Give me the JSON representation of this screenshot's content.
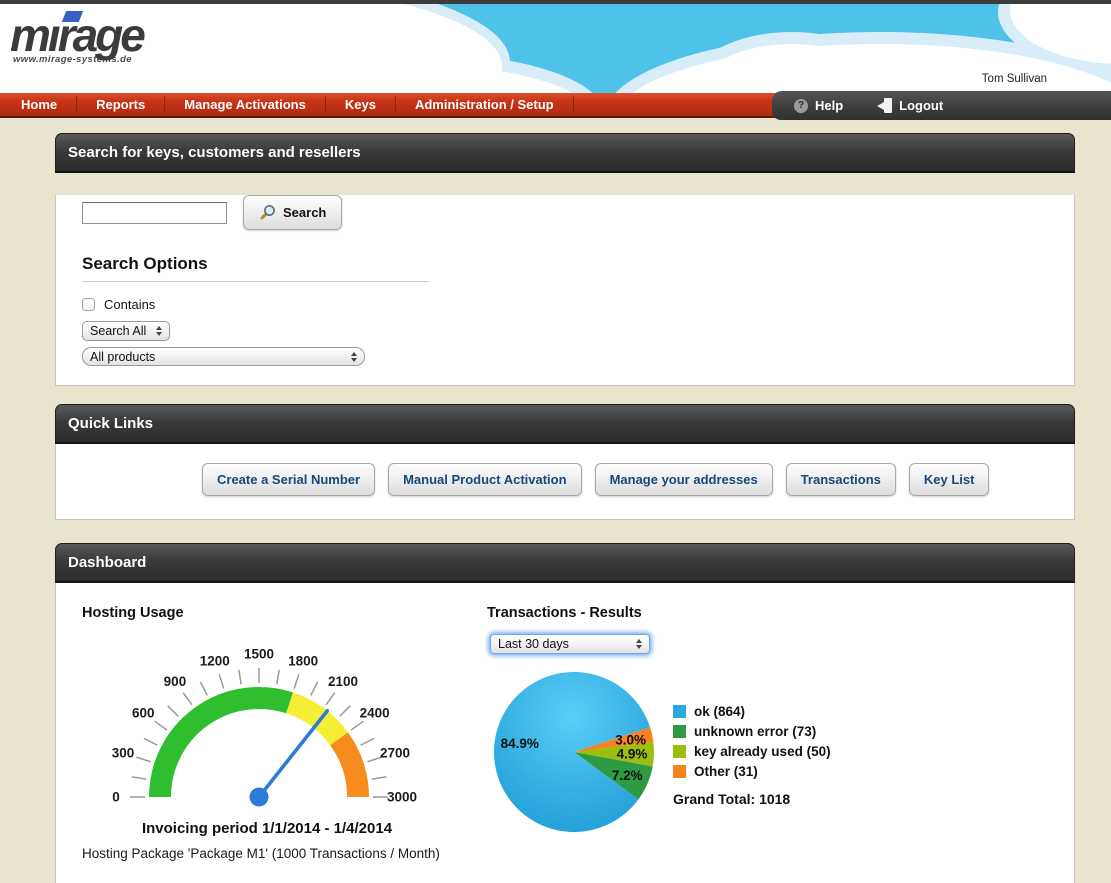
{
  "header": {
    "logo_text": "mirage",
    "logo_url": "www.mirage-systems.de",
    "user_name": "Tom Sullivan"
  },
  "nav": {
    "items": [
      "Home",
      "Reports",
      "Manage Activations",
      "Keys",
      "Administration / Setup"
    ],
    "help_label": "Help",
    "logout_label": "Logout"
  },
  "search_panel": {
    "title": "Search for keys, customers and resellers",
    "search_input_value": "",
    "search_button_label": "Search",
    "options_title": "Search Options",
    "contains_label": "Contains",
    "contains_checked": false,
    "field_select_value": "Search All",
    "product_select_value": "All products"
  },
  "quick_links": {
    "title": "Quick Links",
    "buttons": [
      "Create a Serial Number",
      "Manual Product Activation",
      "Manage your addresses",
      "Transactions",
      "Key List"
    ]
  },
  "dashboard": {
    "title": "Dashboard",
    "hosting_title": "Hosting Usage",
    "transactions_title": "Transactions - Results",
    "period_select_value": "Last 30 days"
  },
  "chart_data": [
    {
      "type": "gauge",
      "title": "Hosting Usage",
      "min": 0,
      "max": 3000,
      "value": 2140,
      "tick_step": 150,
      "label_step": 300,
      "bands": [
        {
          "from": 0,
          "to": 1800,
          "color": "#2EBE2E"
        },
        {
          "from": 1800,
          "to": 2400,
          "color": "#F4EF34"
        },
        {
          "from": 2400,
          "to": 3000,
          "color": "#F68B1E"
        }
      ],
      "needle_color": "#2B7CD9",
      "tick_color": "#999999",
      "label_color": "#1b1b1b",
      "caption": "Invoicing period 1/1/2014 - 1/4/2014",
      "subcaption": "Hosting Package 'Package M1' (1000 Transactions / Month)"
    },
    {
      "type": "pie",
      "title": "Transactions - Results",
      "slices": [
        {
          "label": "ok",
          "count": 864,
          "pct": 84.9,
          "color": "#2CA8DE",
          "gradient": true
        },
        {
          "label": "unknown error",
          "count": 73,
          "pct": 7.2,
          "color": "#2F9A44",
          "gradient": false
        },
        {
          "label": "key already used",
          "count": 50,
          "pct": 4.9,
          "color": "#9CBE0E",
          "gradient": false
        },
        {
          "label": "Other",
          "count": 31,
          "pct": 3.0,
          "color": "#F5831F",
          "gradient": false
        }
      ],
      "draw_sequence": [
        3,
        2,
        1,
        0
      ],
      "start_angle_deg": 18,
      "legend_position": "right",
      "grand_total": "Grand Total: 1018"
    }
  ]
}
